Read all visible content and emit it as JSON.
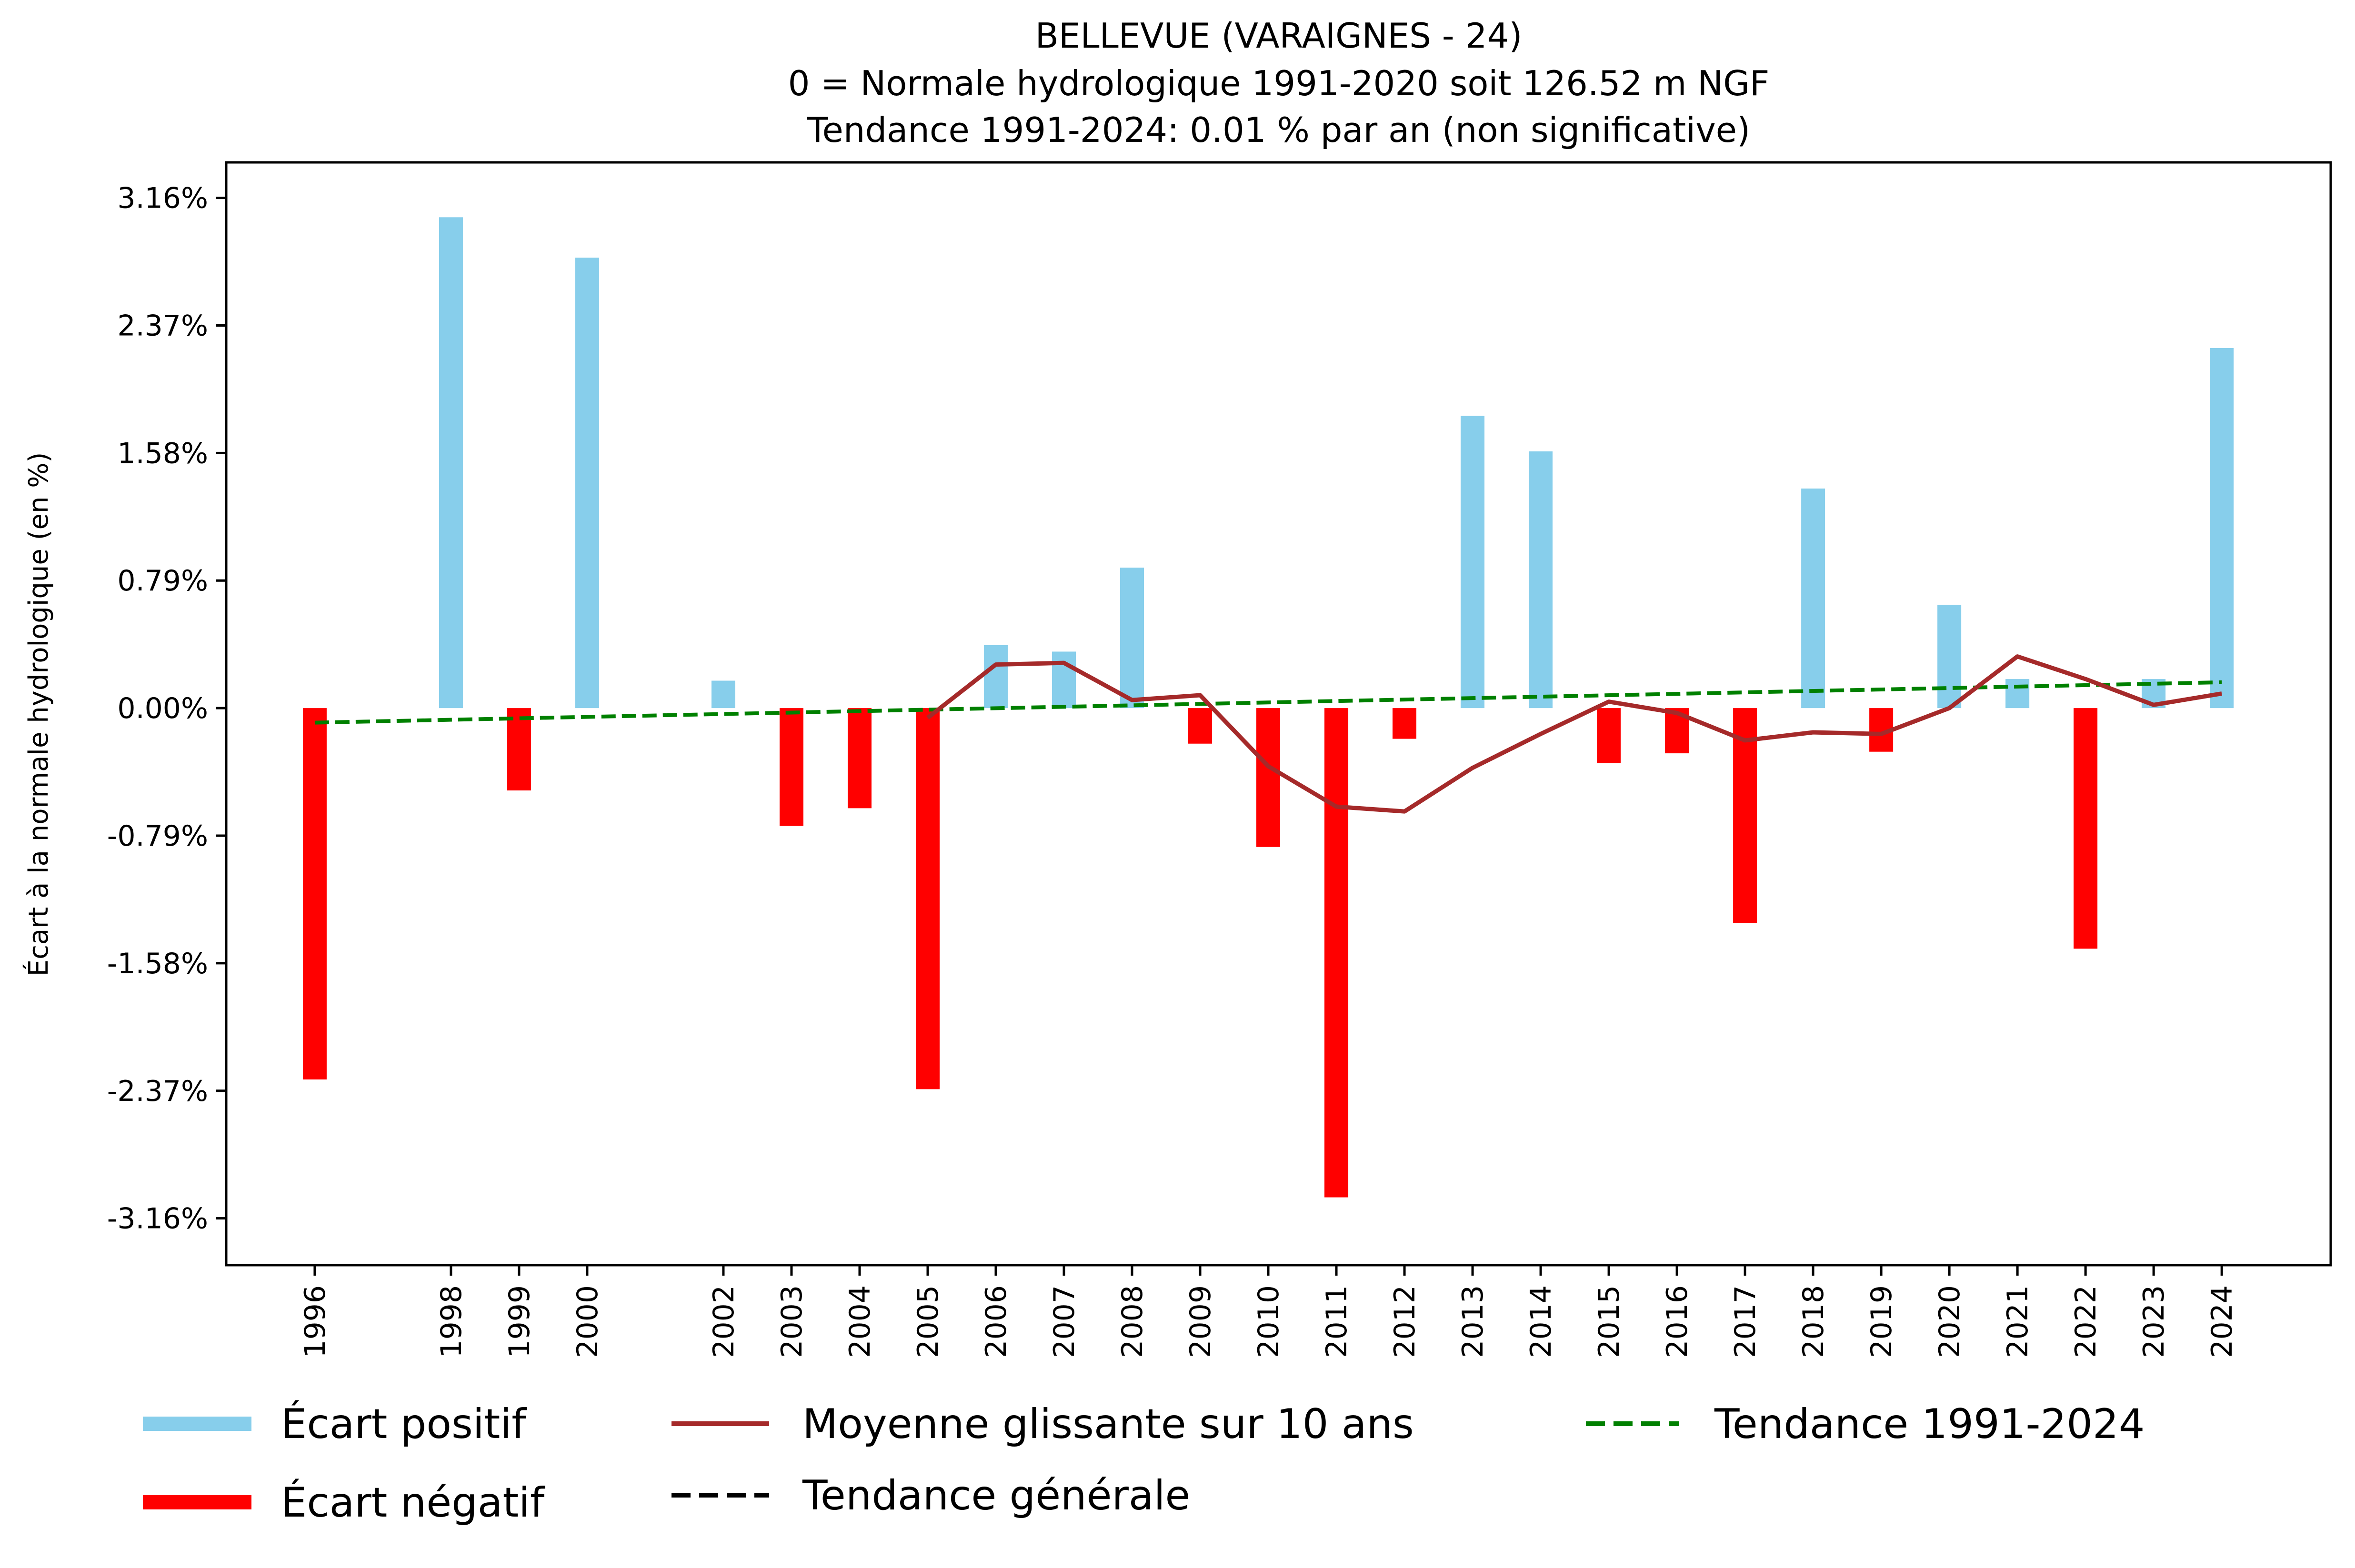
{
  "chart_data": {
    "type": "bar",
    "title_lines": [
      "BELLEVUE (VARAIGNES - 24)",
      "0 = Normale hydrologique 1991-2020 soit 126.52 m NGF",
      "Tendance 1991-2024: 0.01 % par an (non significative)"
    ],
    "xlabel": "",
    "ylabel": "Écart à la normale hydrologique (en %)",
    "ylim": [
      -3.45,
      3.38
    ],
    "yticks": [
      3.16,
      2.37,
      1.58,
      0.79,
      0.0,
      -0.79,
      -1.58,
      -2.37,
      -3.16
    ],
    "ytick_labels": [
      "3.16%",
      "2.37%",
      "1.58%",
      "0.79%",
      "0.00%",
      "-0.79%",
      "-1.58%",
      "-2.37%",
      "-3.16%"
    ],
    "xlim": [
      1994.7,
      2025.6
    ],
    "categories": [
      "1996",
      "1998",
      "1999",
      "2000",
      "2002",
      "2003",
      "2004",
      "2005",
      "2006",
      "2007",
      "2008",
      "2009",
      "2010",
      "2011",
      "2012",
      "2013",
      "2014",
      "2015",
      "2016",
      "2017",
      "2018",
      "2019",
      "2020",
      "2021",
      "2022",
      "2023",
      "2024"
    ],
    "x": [
      1996,
      1998,
      1999,
      2000,
      2002,
      2003,
      2004,
      2005,
      2006,
      2007,
      2008,
      2009,
      2010,
      2011,
      2012,
      2013,
      2014,
      2015,
      2016,
      2017,
      2018,
      2019,
      2020,
      2021,
      2022,
      2023,
      2024
    ],
    "series": [
      {
        "name": "Écart (positif / négatif)",
        "kind": "bar",
        "values": [
          -2.3,
          3.04,
          -0.51,
          2.79,
          0.17,
          -0.73,
          -0.62,
          -2.36,
          0.39,
          0.35,
          0.87,
          -0.22,
          -0.86,
          -3.03,
          -0.19,
          1.81,
          1.59,
          -0.34,
          -0.28,
          -1.33,
          1.36,
          -0.27,
          0.64,
          0.18,
          -1.49,
          0.18,
          2.23
        ]
      },
      {
        "name": "Moyenne glissante sur 10 ans",
        "kind": "line",
        "x": [
          2005,
          2006,
          2007,
          2008,
          2009,
          2010,
          2011,
          2012,
          2013,
          2014,
          2015,
          2016,
          2017,
          2018,
          2019,
          2020,
          2021,
          2022,
          2023,
          2024
        ],
        "values": [
          -0.06,
          0.27,
          0.28,
          0.05,
          0.08,
          -0.36,
          -0.61,
          -0.64,
          -0.37,
          -0.16,
          0.04,
          -0.03,
          -0.2,
          -0.15,
          -0.16,
          0.0,
          0.32,
          0.18,
          0.02,
          0.09
        ]
      },
      {
        "name": "Tendance 1991-2024",
        "kind": "line",
        "style": "dashed",
        "x": [
          1996,
          2024
        ],
        "values": [
          -0.09,
          0.16
        ]
      }
    ],
    "legend": {
      "placement": "bottom",
      "entries": [
        {
          "label": "Écart positif",
          "color": "#87CEEB",
          "style": "solid"
        },
        {
          "label": "Écart négatif",
          "color": "#FF0000",
          "style": "solid"
        },
        {
          "label": "Moyenne glissante sur 10 ans",
          "color": "#A52A2A",
          "style": "solid"
        },
        {
          "label": "Tendance générale",
          "color": "#000000",
          "style": "dashed"
        },
        {
          "label": "Tendance 1991-2024",
          "color": "#008000",
          "style": "dashed"
        }
      ]
    },
    "colors": {
      "positive": "#87CEEB",
      "negative": "#FF0000",
      "moving_average": "#A52A2A",
      "trend_period": "#008000",
      "trend_general": "#000000"
    },
    "grid": false
  }
}
